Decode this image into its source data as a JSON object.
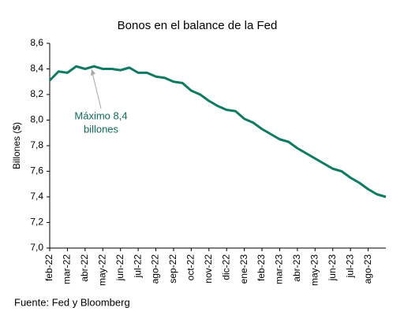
{
  "chart_data": {
    "type": "line",
    "title": "Bonos en el balance de la Fed",
    "y_label": "Billones ($)",
    "source": "Fuente: Fed y Bloomberg",
    "annotation": {
      "text": [
        "Máximo 8,4",
        "billones"
      ],
      "index": 5
    },
    "categories": [
      "feb-22",
      null,
      "mar-22",
      null,
      "abr-22",
      null,
      "may-22",
      null,
      "jun-22",
      null,
      "jul-22",
      null,
      "ago-22",
      null,
      "sep-22",
      null,
      "oct-22",
      null,
      "nov-22",
      null,
      "dic-22",
      null,
      "ene-23",
      null,
      "feb-23",
      null,
      "mar-23",
      null,
      "abr-23",
      null,
      "may-23",
      null,
      "jun-23",
      null,
      "jul-23",
      null,
      "ago-23",
      null,
      null
    ],
    "series": [
      {
        "name": "Bonos",
        "color": "#0e7a62",
        "values": [
          8.31,
          8.38,
          8.37,
          8.42,
          8.4,
          8.42,
          8.4,
          8.4,
          8.39,
          8.41,
          8.37,
          8.37,
          8.34,
          8.33,
          8.3,
          8.29,
          8.23,
          8.2,
          8.15,
          8.11,
          8.08,
          8.07,
          8.01,
          7.98,
          7.93,
          7.89,
          7.85,
          7.83,
          7.78,
          7.74,
          7.7,
          7.66,
          7.62,
          7.6,
          7.55,
          7.51,
          7.46,
          7.42,
          7.4
        ]
      }
    ],
    "ylim": [
      7.0,
      8.6
    ],
    "yticks": [
      {
        "value": 7.0,
        "label": "7,0"
      },
      {
        "value": 7.2,
        "label": "7,2"
      },
      {
        "value": 7.4,
        "label": "7,4"
      },
      {
        "value": 7.6,
        "label": "7,6"
      },
      {
        "value": 7.8,
        "label": "7,8"
      },
      {
        "value": 8.0,
        "label": "8,0"
      },
      {
        "value": 8.2,
        "label": "8,2"
      },
      {
        "value": 8.4,
        "label": "8,4"
      },
      {
        "value": 8.6,
        "label": "8,6"
      }
    ],
    "grid": false
  }
}
